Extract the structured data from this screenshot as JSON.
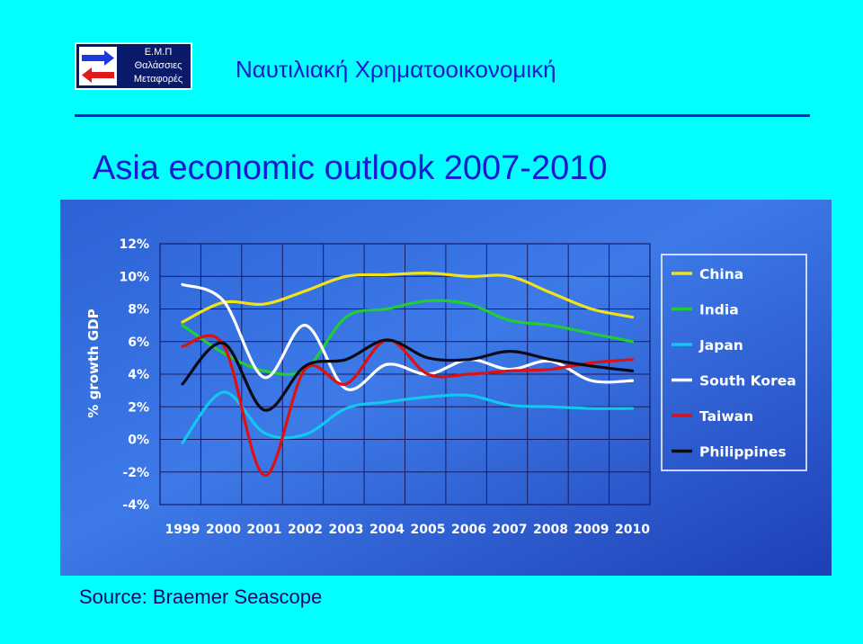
{
  "logo": {
    "lines": [
      "Ε.Μ.Π",
      "Θαλάσσιες",
      "Μεταφορές"
    ]
  },
  "header": {
    "title": "Ναυτιλιακή Χρηματοοικονομική"
  },
  "slide": {
    "title": "Asia economic outlook 2007-2010",
    "source": "Source: Braemer Seascope"
  },
  "colors": {
    "background": "#00ffff",
    "title_text": "#1a1ad0",
    "chart_bg_top": "#3e7cec",
    "chart_bg_bottom": "#1e40b8"
  },
  "chart_data": {
    "type": "line",
    "title": "",
    "xlabel": "",
    "ylabel": "% growth GDP",
    "x": [
      "1999",
      "2000",
      "2001",
      "2002",
      "2003",
      "2004",
      "2005",
      "2006",
      "2007",
      "2008",
      "2009",
      "2010"
    ],
    "ylim": [
      -4,
      12
    ],
    "yticks": [
      -4,
      -2,
      0,
      2,
      4,
      6,
      8,
      10,
      12
    ],
    "ytick_labels": [
      "-4%",
      "-2%",
      "0%",
      "2%",
      "4%",
      "6%",
      "8%",
      "10%",
      "12%"
    ],
    "grid": true,
    "legend_position": "right",
    "series": [
      {
        "name": "China",
        "color": "#f2e21a",
        "values": [
          7.2,
          8.4,
          8.3,
          9.1,
          10.0,
          10.1,
          10.2,
          10.0,
          10.0,
          9.0,
          8.0,
          7.5
        ]
      },
      {
        "name": "India",
        "color": "#22cc33",
        "values": [
          7.0,
          5.3,
          4.2,
          4.3,
          7.5,
          8.0,
          8.5,
          8.3,
          7.3,
          7.0,
          6.5,
          6.0
        ]
      },
      {
        "name": "Japan",
        "color": "#11c8f0",
        "values": [
          -0.2,
          2.9,
          0.4,
          0.3,
          1.9,
          2.3,
          2.6,
          2.7,
          2.1,
          2.0,
          1.9,
          1.9
        ]
      },
      {
        "name": "South Korea",
        "color": "#ffffff",
        "values": [
          9.5,
          8.5,
          3.8,
          7.0,
          3.1,
          4.6,
          4.0,
          4.9,
          4.3,
          4.8,
          3.6,
          3.6
        ]
      },
      {
        "name": "Taiwan",
        "color": "#dd1111",
        "values": [
          5.7,
          5.8,
          -2.2,
          4.3,
          3.4,
          6.1,
          4.0,
          4.0,
          4.2,
          4.3,
          4.7,
          4.9
        ]
      },
      {
        "name": "Philippines",
        "color": "#0a0a14",
        "values": [
          3.4,
          5.9,
          1.8,
          4.5,
          4.9,
          6.1,
          5.0,
          4.9,
          5.4,
          4.9,
          4.5,
          4.2
        ]
      }
    ]
  }
}
